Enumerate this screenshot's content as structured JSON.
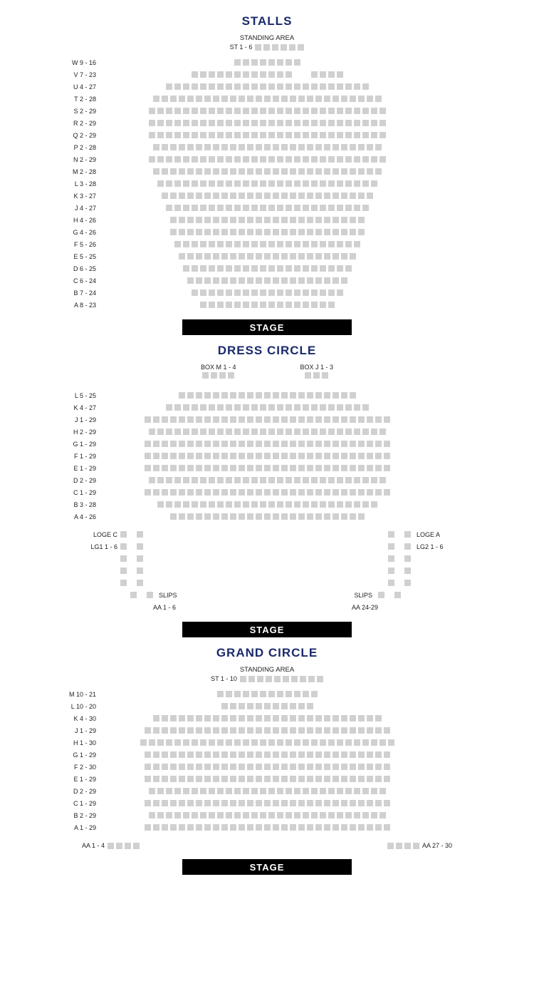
{
  "colors": {
    "title": "#1a2a6c",
    "text": "#222222",
    "seat": "#d0d0d0",
    "stage_bg": "#000000",
    "stage_text": "#ffffff",
    "background": "#ffffff"
  },
  "fonts": {
    "title_size": 17,
    "label_size": 9,
    "subtitle_size": 9.5,
    "stage_size": 13
  },
  "seat_size": 9,
  "stage_label": "STAGE",
  "stalls": {
    "title": "STALLS",
    "standing_area_label": "STANDING AREA",
    "standing_range": "ST 1 - 6",
    "standing_count": 6,
    "rows": [
      {
        "label": "W 9 - 16",
        "count": 8
      },
      {
        "label": "V 7 - 23",
        "segments": [
          12,
          4
        ],
        "gap": 2
      },
      {
        "label": "U 4 - 27",
        "count": 24
      },
      {
        "label": "T 2 - 28",
        "count": 27
      },
      {
        "label": "S 2 - 29",
        "count": 28
      },
      {
        "label": "R 2 - 29",
        "count": 28
      },
      {
        "label": "Q 2 - 29",
        "count": 28
      },
      {
        "label": "P 2 - 28",
        "count": 27
      },
      {
        "label": "N 2 - 29",
        "count": 28
      },
      {
        "label": "M 2 - 28",
        "count": 27
      },
      {
        "label": "L 3 - 28",
        "count": 26
      },
      {
        "label": "K 3 - 27",
        "count": 25
      },
      {
        "label": "J 4 - 27",
        "count": 24
      },
      {
        "label": "H 4 - 26",
        "count": 23
      },
      {
        "label": "G 4 - 26",
        "count": 23
      },
      {
        "label": "F 5 - 26",
        "count": 22
      },
      {
        "label": "E 5 - 25",
        "count": 21
      },
      {
        "label": "D 6 - 25",
        "count": 20
      },
      {
        "label": "C 6 - 24",
        "count": 19
      },
      {
        "label": "B 7 - 24",
        "count": 18
      },
      {
        "label": "A 8 - 23",
        "count": 16
      }
    ]
  },
  "dress_circle": {
    "title": "DRESS CIRCLE",
    "boxes": [
      {
        "label": "BOX M 1 - 4",
        "count": 4
      },
      {
        "label": "BOX J 1 - 3",
        "count": 3
      }
    ],
    "rows": [
      {
        "label": "L 5 - 25",
        "count": 21
      },
      {
        "label": "K 4 - 27",
        "count": 24
      },
      {
        "label": "J 1 - 29",
        "count": 29
      },
      {
        "label": "H 2 - 29",
        "count": 28
      },
      {
        "label": "G 1 - 29",
        "count": 29
      },
      {
        "label": "F 1 - 29",
        "count": 29
      },
      {
        "label": "E 1 - 29",
        "count": 29
      },
      {
        "label": "D 2 - 29",
        "count": 28
      },
      {
        "label": "C 1 - 29",
        "count": 29
      },
      {
        "label": "B 3 - 28",
        "count": 26
      },
      {
        "label": "A 4 - 26",
        "count": 23
      }
    ],
    "loge_left": {
      "top_label": "LOGE C",
      "bottom_label": "LG1 1 - 6",
      "rows": 5,
      "seats_per_row": 2,
      "slips_label": "SLIPS",
      "slips_range": "AA 1 - 6"
    },
    "loge_right": {
      "top_label": "LOGE A",
      "bottom_label": "LG2 1 - 6",
      "rows": 5,
      "seats_per_row": 2,
      "slips_label": "SLIPS",
      "slips_range": "AA 24-29"
    }
  },
  "grand_circle": {
    "title": "GRAND CIRCLE",
    "standing_area_label": "STANDING AREA",
    "standing_range": "ST 1 - 10",
    "standing_count": 10,
    "rows": [
      {
        "label": "M 10 - 21",
        "count": 12
      },
      {
        "label": "L 10 - 20",
        "count": 11
      },
      {
        "label": "K 4 - 30",
        "count": 27
      },
      {
        "label": "J 1 - 29",
        "count": 29
      },
      {
        "label": "H 1 - 30",
        "count": 30
      },
      {
        "label": "G 1 - 29",
        "count": 29
      },
      {
        "label": "F 2 - 30",
        "count": 29
      },
      {
        "label": "E 1 - 29",
        "count": 29
      },
      {
        "label": "D 2 - 29",
        "count": 28
      },
      {
        "label": "C 1 - 29",
        "count": 29
      },
      {
        "label": "B 2 - 29",
        "count": 28
      },
      {
        "label": "A 1 - 29",
        "count": 29
      }
    ],
    "aa_left": {
      "label": "AA 1 - 4",
      "count": 4
    },
    "aa_right": {
      "label": "AA 27 - 30",
      "count": 4
    }
  }
}
